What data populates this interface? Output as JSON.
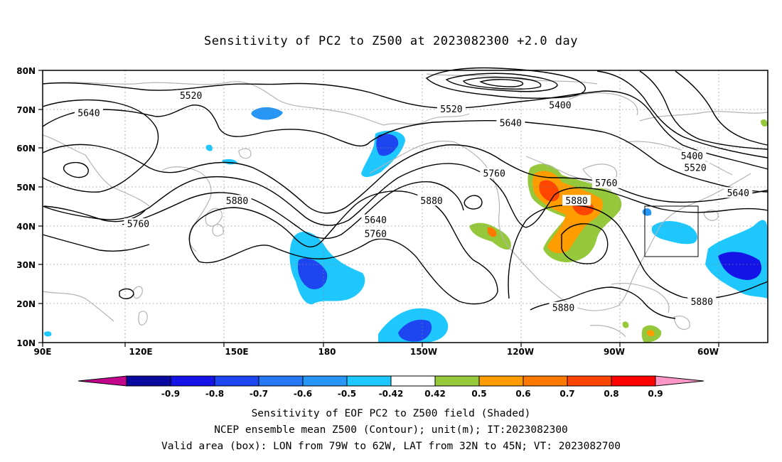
{
  "title": "Sensitivity of PC2 to Z500 at 2023082300 +2.0 day",
  "map": {
    "lat_labels": [
      "80N",
      "70N",
      "60N",
      "50N",
      "40N",
      "30N",
      "20N",
      "10N"
    ],
    "lon_labels": [
      "90E",
      "120E",
      "150E",
      "180",
      "150W",
      "120W",
      "90W",
      "60W"
    ],
    "extent": {
      "lon_min": 90,
      "lon_max": 310,
      "lat_min": 10,
      "lat_max": 80
    },
    "gridlines": "dotted",
    "valid_box": {
      "lon_west": "79W",
      "lon_east": "62W",
      "lat_south": "32N",
      "lat_north": "45N"
    },
    "contour_labels": [
      {
        "text": "5520",
        "lon": 135,
        "lat": 73.5
      },
      {
        "text": "5640",
        "lon": 104,
        "lat": 69
      },
      {
        "text": "5520",
        "lon": 214,
        "lat": 70
      },
      {
        "text": "5400",
        "lon": 247,
        "lat": 71
      },
      {
        "text": "5640",
        "lon": 232,
        "lat": 66.5
      },
      {
        "text": "5400",
        "lon": 287,
        "lat": 58
      },
      {
        "text": "5520",
        "lon": 288,
        "lat": 55
      },
      {
        "text": "5760",
        "lon": 227,
        "lat": 53.5
      },
      {
        "text": "5760",
        "lon": 261,
        "lat": 51
      },
      {
        "text": "5640",
        "lon": 301,
        "lat": 48.5
      },
      {
        "text": "5880",
        "lon": 149,
        "lat": 46.5
      },
      {
        "text": "5880",
        "lon": 208,
        "lat": 46.5
      },
      {
        "text": "5880",
        "lon": 252,
        "lat": 46.5
      },
      {
        "text": "5760",
        "lon": 119,
        "lat": 40.5
      },
      {
        "text": "5640",
        "lon": 191,
        "lat": 41.5
      },
      {
        "text": "5760",
        "lon": 191,
        "lat": 38
      },
      {
        "text": "5880",
        "lon": 248,
        "lat": 19
      },
      {
        "text": "5880",
        "lon": 290,
        "lat": 20.5
      }
    ]
  },
  "colorbar": {
    "labels": [
      "-0.9",
      "-0.8",
      "-0.7",
      "-0.6",
      "-0.5",
      "-0.42",
      "0.42",
      "0.5",
      "0.6",
      "0.7",
      "0.8",
      "0.9"
    ],
    "colors": [
      "#c2058a",
      "#0a0aa0",
      "#1414e6",
      "#1e46f0",
      "#2878f5",
      "#2896f5",
      "#1ec8ff",
      "#ffffff",
      "#96c83c",
      "#ff9c00",
      "#ff7800",
      "#ff4600",
      "#ff0000",
      "#ff96c8"
    ]
  },
  "captions": [
    "Sensitivity of EOF PC2 to Z500 field (Shaded)",
    "NCEP ensemble mean Z500 (Contour); unit(m); IT:2023082300",
    "Valid area (box): LON from 79W to 62W, LAT from 32N to 45N; VT: 2023082700"
  ]
}
